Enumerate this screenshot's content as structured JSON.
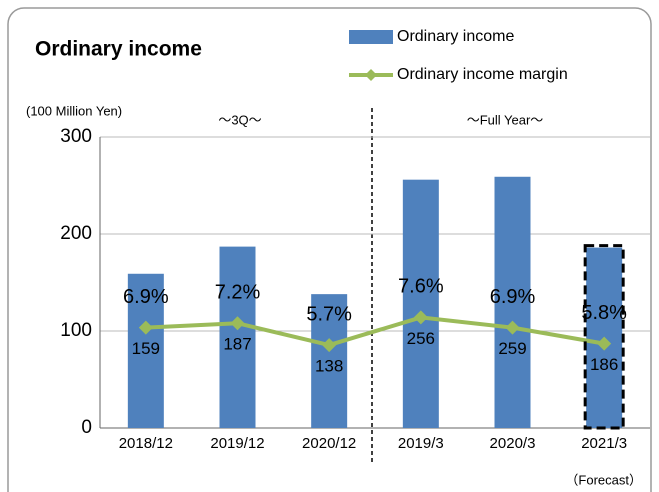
{
  "chart_data": {
    "type": "bar",
    "title": "Ordinary income",
    "y_axis_label": "(100 Million Yen)",
    "annotations": [
      "～3Q～",
      "～Full Year～",
      "（Forecast）"
    ],
    "categories": [
      "2018/12",
      "2019/12",
      "2020/12",
      "2019/3",
      "2020/3",
      "2021/3"
    ],
    "series": [
      {
        "name": "Ordinary income",
        "type": "bar",
        "color": "#4f81bd",
        "values": [
          159,
          187,
          138,
          256,
          259,
          186
        ]
      },
      {
        "name": "Ordinary income margin",
        "type": "line",
        "axis": "y2",
        "color": "#9bbb59",
        "values": [
          6.9,
          7.2,
          5.7,
          7.6,
          6.9,
          5.8
        ],
        "value_labels": [
          "6.9%",
          "7.2%",
          "5.7%",
          "7.6%",
          "6.9%",
          "5.8%"
        ]
      }
    ],
    "ylim": [
      0,
      300
    ],
    "yticks": [
      0,
      100,
      200,
      300
    ],
    "y2lim": [
      0,
      20
    ],
    "grid": true
  }
}
